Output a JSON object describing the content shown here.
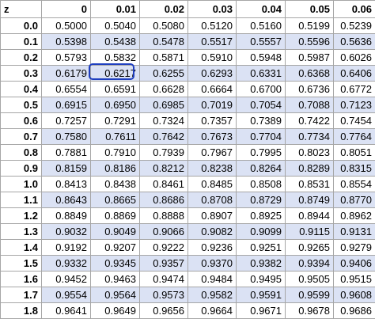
{
  "table": {
    "header": [
      "z",
      "0",
      "0.01",
      "0.02",
      "0.03",
      "0.04",
      "0.05",
      "0.06"
    ],
    "rows": [
      [
        "0.0",
        "0.5000",
        "0.5040",
        "0.5080",
        "0.5120",
        "0.5160",
        "0.5199",
        "0.5239"
      ],
      [
        "0.1",
        "0.5398",
        "0.5438",
        "0.5478",
        "0.5517",
        "0.5557",
        "0.5596",
        "0.5636"
      ],
      [
        "0.2",
        "0.5793",
        "0.5832",
        "0.5871",
        "0.5910",
        "0.5948",
        "0.5987",
        "0.6026"
      ],
      [
        "0.3",
        "0.6179",
        "0.6217",
        "0.6255",
        "0.6293",
        "0.6331",
        "0.6368",
        "0.6406"
      ],
      [
        "0.4",
        "0.6554",
        "0.6591",
        "0.6628",
        "0.6664",
        "0.6700",
        "0.6736",
        "0.6772"
      ],
      [
        "0.5",
        "0.6915",
        "0.6950",
        "0.6985",
        "0.7019",
        "0.7054",
        "0.7088",
        "0.7123"
      ],
      [
        "0.6",
        "0.7257",
        "0.7291",
        "0.7324",
        "0.7357",
        "0.7389",
        "0.7422",
        "0.7454"
      ],
      [
        "0.7",
        "0.7580",
        "0.7611",
        "0.7642",
        "0.7673",
        "0.7704",
        "0.7734",
        "0.7764"
      ],
      [
        "0.8",
        "0.7881",
        "0.7910",
        "0.7939",
        "0.7967",
        "0.7995",
        "0.8023",
        "0.8051"
      ],
      [
        "0.9",
        "0.8159",
        "0.8186",
        "0.8212",
        "0.8238",
        "0.8264",
        "0.8289",
        "0.8315"
      ],
      [
        "1.0",
        "0.8413",
        "0.8438",
        "0.8461",
        "0.8485",
        "0.8508",
        "0.8531",
        "0.8554"
      ],
      [
        "1.1",
        "0.8643",
        "0.8665",
        "0.8686",
        "0.8708",
        "0.8729",
        "0.8749",
        "0.8770"
      ],
      [
        "1.2",
        "0.8849",
        "0.8869",
        "0.8888",
        "0.8907",
        "0.8925",
        "0.8944",
        "0.8962"
      ],
      [
        "1.3",
        "0.9032",
        "0.9049",
        "0.9066",
        "0.9082",
        "0.9099",
        "0.9115",
        "0.9131"
      ],
      [
        "1.4",
        "0.9192",
        "0.9207",
        "0.9222",
        "0.9236",
        "0.9251",
        "0.9265",
        "0.9279"
      ],
      [
        "1.5",
        "0.9332",
        "0.9345",
        "0.9357",
        "0.9370",
        "0.9382",
        "0.9394",
        "0.9406"
      ],
      [
        "1.6",
        "0.9452",
        "0.9463",
        "0.9474",
        "0.9484",
        "0.9495",
        "0.9505",
        "0.9515"
      ],
      [
        "1.7",
        "0.9554",
        "0.9564",
        "0.9573",
        "0.9582",
        "0.9591",
        "0.9599",
        "0.9608"
      ],
      [
        "1.8",
        "0.9641",
        "0.9649",
        "0.9656",
        "0.9664",
        "0.9671",
        "0.9678",
        "0.9686"
      ]
    ]
  }
}
